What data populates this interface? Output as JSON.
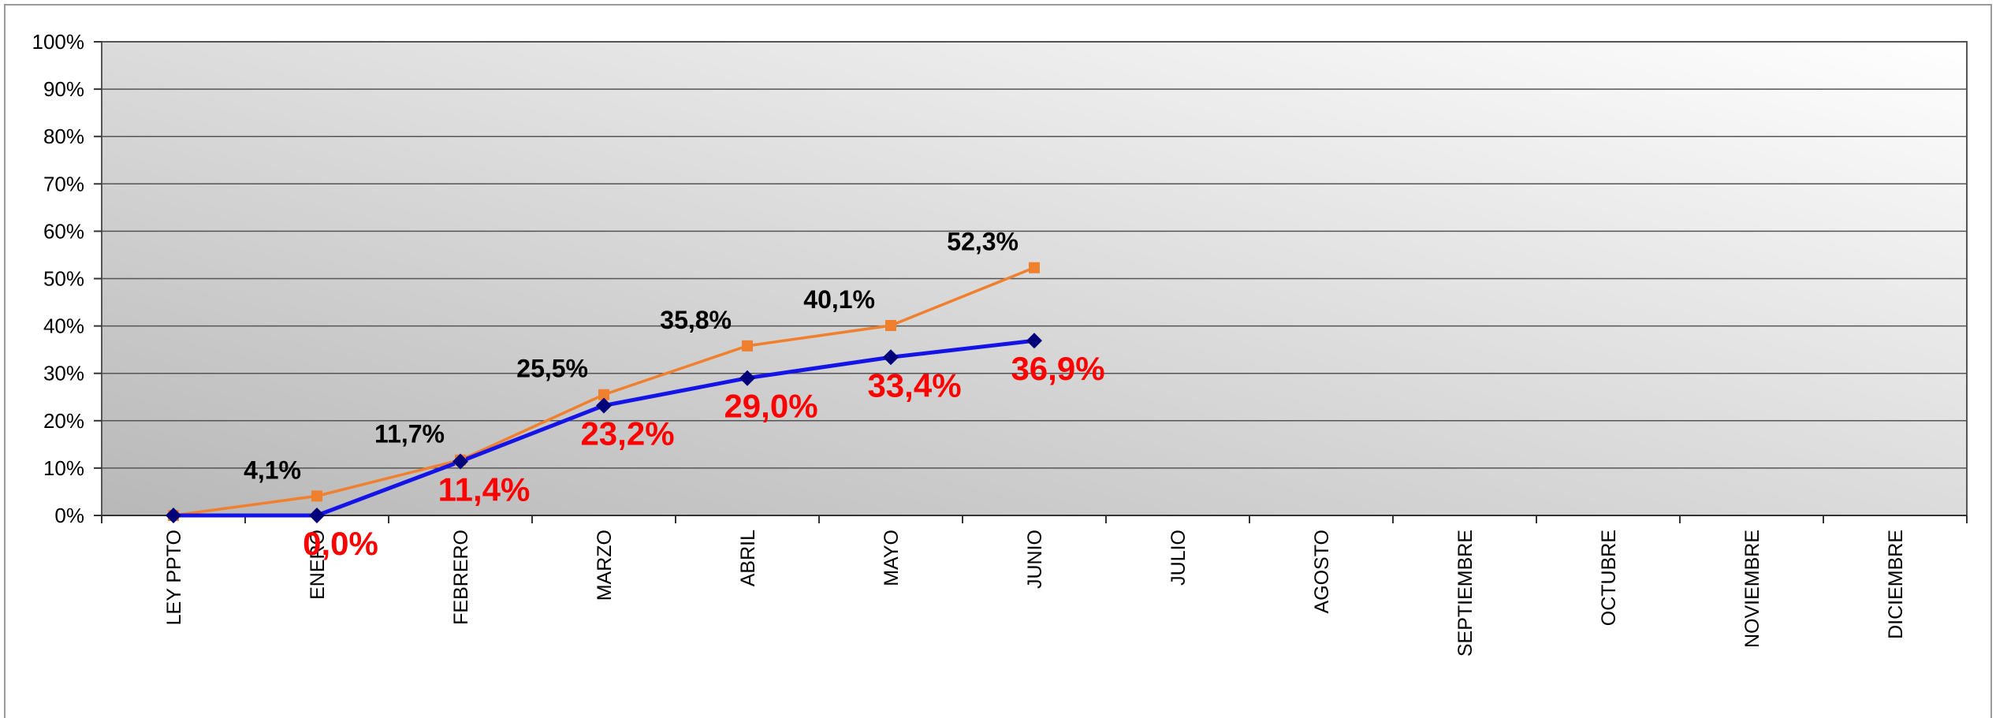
{
  "chart_data": {
    "type": "line",
    "categories": [
      "LEY PPTO",
      "ENERO",
      "FEBRERO",
      "MARZO",
      "ABRIL",
      "MAYO",
      "JUNIO",
      "JULIO",
      "AGOSTO",
      "SEPTIEMBRE",
      "OCTUBRE",
      "NOVIEMBRE",
      "DICIEMBRE"
    ],
    "series": [
      {
        "color": "#f07f2e",
        "marker_color": "#f07f2e",
        "marker": "square",
        "label_color": "#000000",
        "values": [
          0,
          4.1,
          11.7,
          25.5,
          35.8,
          40.1,
          52.3,
          null,
          null,
          null,
          null,
          null,
          null
        ],
        "value_labels": [
          null,
          "4,1%",
          "11,7%",
          "25,5%",
          "35,8%",
          "40,1%",
          "52,3%",
          null,
          null,
          null,
          null,
          null,
          null
        ]
      },
      {
        "color": "#1414e6",
        "marker_color": "#00007a",
        "marker": "diamond",
        "label_color": "#ff0000",
        "values": [
          0,
          0.0,
          11.4,
          23.2,
          29.0,
          33.4,
          36.9,
          null,
          null,
          null,
          null,
          null,
          null
        ],
        "value_labels": [
          null,
          "0,0%",
          "11,4%",
          "23,2%",
          "29,0%",
          "33,4%",
          "36,9%",
          null,
          null,
          null,
          null,
          null,
          null
        ]
      }
    ],
    "ylim": [
      0,
      100
    ],
    "yticks": [
      {
        "value": 0,
        "label": "0%"
      },
      {
        "value": 10,
        "label": "10%"
      },
      {
        "value": 20,
        "label": "20%"
      },
      {
        "value": 30,
        "label": "30%"
      },
      {
        "value": 40,
        "label": "40%"
      },
      {
        "value": 50,
        "label": "50%"
      },
      {
        "value": 60,
        "label": "60%"
      },
      {
        "value": 70,
        "label": "70%"
      },
      {
        "value": 80,
        "label": "80%"
      },
      {
        "value": 90,
        "label": "90%"
      },
      {
        "value": 100,
        "label": "100%"
      }
    ],
    "grid": true
  }
}
